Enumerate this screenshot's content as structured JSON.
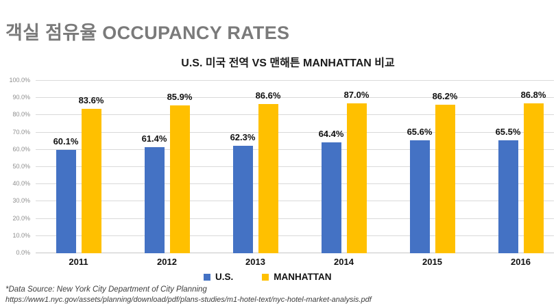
{
  "page": {
    "title": "객실 점유율 OCCUPANCY RATES",
    "footer_line1": "*Data Source: New York City Department of City Planning",
    "footer_line2": "https://www1.nyc.gov/assets/planning/download/pdf/plans-studies/m1-hotel-text/nyc-hotel-market-analysis.pdf"
  },
  "chart_data": {
    "type": "bar",
    "title": "U.S. 미국 전역 VS 맨해튼 MANHATTAN 비교",
    "categories": [
      "2011",
      "2012",
      "2013",
      "2014",
      "2015",
      "2016"
    ],
    "series": [
      {
        "name": "U.S.",
        "color": "#4472C4",
        "values": [
          60.1,
          61.4,
          62.3,
          64.4,
          65.6,
          65.5
        ]
      },
      {
        "name": "MANHATTAN",
        "color": "#FFC000",
        "values": [
          83.6,
          85.9,
          86.6,
          87.0,
          86.2,
          86.8
        ]
      }
    ],
    "value_labels": [
      [
        "60.1%",
        "61.4%",
        "62.3%",
        "64.4%",
        "65.6%",
        "65.5%"
      ],
      [
        "83.6%",
        "85.9%",
        "86.6%",
        "87.0%",
        "86.2%",
        "86.8%"
      ]
    ],
    "ylim": [
      0,
      100
    ],
    "ytick_labels": [
      "0.0%",
      "10.0%",
      "20.0%",
      "30.0%",
      "40.0%",
      "50.0%",
      "60.0%",
      "70.0%",
      "80.0%",
      "90.0%",
      "100.0%"
    ],
    "grid": true,
    "legend_position": "bottom",
    "colors": {
      "gridline": "#d9d9d9",
      "tick_text": "#8c8c8c",
      "label_text": "#111111"
    }
  }
}
